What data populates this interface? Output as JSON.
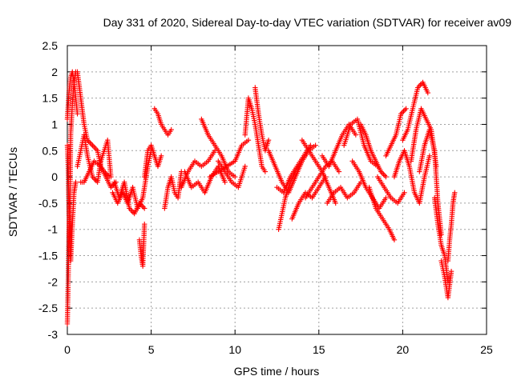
{
  "chart_data": {
    "type": "scatter",
    "title": "Day 331 of 2020, Sidereal Day-to-day VTEC variation (SDTVAR) for receiver av09",
    "xlabel": "GPS time / hours",
    "ylabel": "SDTVAR / TECUs",
    "xlim": [
      0,
      25
    ],
    "ylim": [
      -3,
      2.5
    ],
    "xticks": [
      "0",
      "5",
      "10",
      "15",
      "20",
      "25"
    ],
    "yticks": [
      "2.5",
      "2",
      "1.5",
      "1",
      "0.5",
      "0",
      "-0.5",
      "-1",
      "-1.5",
      "-2",
      "-2.5",
      "-3"
    ],
    "grid": true,
    "marker": "+",
    "series": [
      {
        "name": "SDTVAR",
        "color": "#ff0000",
        "tracks": [
          {
            "x": [
              0.0,
              0.1,
              0.2,
              0.3,
              0.4,
              0.5,
              0.6
            ],
            "y": [
              1.1,
              1.6,
              1.9,
              2.0,
              1.8,
              1.5,
              1.2
            ]
          },
          {
            "x": [
              0.0,
              0.05,
              0.1,
              0.15,
              0.2,
              0.3,
              0.4,
              0.5
            ],
            "y": [
              -2.8,
              -2.0,
              -1.0,
              -0.6,
              0.8,
              1.4,
              1.8,
              2.0
            ]
          },
          {
            "x": [
              0.0,
              0.05,
              0.1,
              0.2,
              0.3,
              0.4,
              0.5
            ],
            "y": [
              0.6,
              0.2,
              -0.7,
              -1.6,
              -0.9,
              -0.3,
              -0.1
            ]
          },
          {
            "x": [
              0.6,
              0.8,
              1.0,
              1.2,
              1.5,
              1.8,
              2.0,
              2.2,
              2.5
            ],
            "y": [
              2.0,
              1.5,
              1.0,
              0.7,
              0.6,
              0.5,
              0.2,
              0.1,
              0.0
            ]
          },
          {
            "x": [
              0.6,
              0.8,
              1.0,
              1.2,
              1.5,
              1.8,
              2.0,
              2.4,
              2.6
            ],
            "y": [
              0.2,
              0.5,
              0.8,
              0.4,
              0.0,
              -0.1,
              0.3,
              0.7,
              0.0
            ]
          },
          {
            "x": [
              0.8,
              1.0,
              1.3,
              1.6,
              2.0,
              2.3,
              2.6,
              2.9
            ],
            "y": [
              -0.1,
              -0.1,
              0.1,
              0.3,
              0.2,
              0.0,
              -0.2,
              -0.1
            ]
          },
          {
            "x": [
              2.7,
              3.0,
              3.3,
              3.6,
              3.9,
              4.2,
              4.5,
              4.8,
              5.0
            ],
            "y": [
              -0.3,
              -0.5,
              -0.3,
              -0.5,
              -0.2,
              -0.6,
              -0.4,
              0.2,
              0.5
            ]
          },
          {
            "x": [
              2.8,
              3.1,
              3.4,
              3.7,
              4.0,
              4.3,
              4.6
            ],
            "y": [
              -0.1,
              -0.4,
              -0.1,
              -0.6,
              -0.7,
              -0.5,
              -0.6
            ]
          },
          {
            "x": [
              4.3,
              4.4,
              4.5,
              4.6
            ],
            "y": [
              -1.2,
              -1.5,
              -1.7,
              -0.9
            ]
          },
          {
            "x": [
              4.6,
              4.8,
              5.0,
              5.2,
              5.4,
              5.6
            ],
            "y": [
              0.0,
              0.5,
              0.6,
              0.4,
              0.2,
              0.4
            ]
          },
          {
            "x": [
              5.2,
              5.4,
              5.6,
              5.8,
              6.0,
              6.2
            ],
            "y": [
              1.3,
              1.2,
              1.0,
              0.9,
              0.8,
              0.9
            ]
          },
          {
            "x": [
              5.8,
              6.0,
              6.2,
              6.4,
              6.6,
              6.8
            ],
            "y": [
              -0.6,
              -0.2,
              0.0,
              -0.3,
              -0.4,
              0.1
            ]
          },
          {
            "x": [
              6.8,
              7.2,
              7.6,
              8.0,
              8.4,
              8.8
            ],
            "y": [
              -0.2,
              0.1,
              0.3,
              0.2,
              0.3,
              0.5
            ]
          },
          {
            "x": [
              7.0,
              7.4,
              7.8,
              8.2,
              8.6,
              9.0,
              9.4
            ],
            "y": [
              0.1,
              -0.2,
              -0.1,
              -0.3,
              0.0,
              0.2,
              -0.1
            ]
          },
          {
            "x": [
              8.0,
              8.4,
              8.8,
              9.2,
              9.6,
              10.0
            ],
            "y": [
              1.1,
              0.8,
              0.6,
              0.4,
              0.1,
              0.0
            ]
          },
          {
            "x": [
              8.5,
              9.0,
              9.5,
              10.0,
              10.4,
              10.8
            ],
            "y": [
              0.0,
              0.1,
              0.2,
              0.3,
              0.6,
              0.7
            ]
          },
          {
            "x": [
              9.0,
              9.4,
              9.8,
              10.2,
              10.6
            ],
            "y": [
              0.3,
              0.1,
              -0.1,
              -0.2,
              0.2
            ]
          },
          {
            "x": [
              10.6,
              10.8,
              11.0,
              11.2,
              11.4,
              11.6,
              11.8
            ],
            "y": [
              0.8,
              1.5,
              1.3,
              1.0,
              0.6,
              0.2,
              0.1
            ]
          },
          {
            "x": [
              11.2,
              11.4,
              11.6,
              11.8,
              12.0
            ],
            "y": [
              1.7,
              1.2,
              0.8,
              0.5,
              0.7
            ]
          },
          {
            "x": [
              12.0,
              12.4,
              12.8,
              13.2,
              13.6,
              14.0
            ],
            "y": [
              0.5,
              0.2,
              -0.1,
              -0.3,
              0.0,
              0.3
            ]
          },
          {
            "x": [
              12.6,
              12.8,
              13.0,
              13.3,
              13.6,
              14.0,
              14.4,
              14.8
            ],
            "y": [
              -1.0,
              -0.7,
              -0.4,
              -0.1,
              0.1,
              0.3,
              0.5,
              0.6
            ]
          },
          {
            "x": [
              12.5,
              12.9,
              13.3,
              13.7,
              14.1,
              14.5
            ],
            "y": [
              -0.2,
              -0.3,
              0.0,
              0.2,
              0.4,
              0.6
            ]
          },
          {
            "x": [
              13.4,
              13.8,
              14.2,
              14.6,
              15.0,
              15.4
            ],
            "y": [
              -0.8,
              -0.5,
              -0.3,
              -0.4,
              -0.2,
              0.0
            ]
          },
          {
            "x": [
              14.0,
              14.4,
              14.8,
              15.2,
              15.6,
              16.0
            ],
            "y": [
              0.7,
              0.5,
              0.3,
              0.1,
              -0.2,
              -0.5
            ]
          },
          {
            "x": [
              14.2,
              14.6,
              15.0,
              15.4,
              15.8,
              16.2
            ],
            "y": [
              -0.4,
              -0.2,
              0.0,
              0.2,
              0.3,
              0.1
            ]
          },
          {
            "x": [
              15.2,
              15.6,
              16.0,
              16.4,
              16.8,
              17.2
            ],
            "y": [
              0.4,
              0.2,
              0.5,
              0.8,
              1.0,
              0.8
            ]
          },
          {
            "x": [
              15.5,
              15.9,
              16.3,
              16.7,
              17.1,
              17.5
            ],
            "y": [
              -0.5,
              -0.3,
              -0.2,
              -0.4,
              -0.3,
              -0.1
            ]
          },
          {
            "x": [
              16.5,
              16.9,
              17.3,
              17.7,
              18.1,
              18.5
            ],
            "y": [
              0.6,
              1.0,
              1.1,
              0.6,
              0.3,
              0.2
            ]
          },
          {
            "x": [
              17.0,
              17.4,
              17.8,
              18.2,
              18.6,
              19.0
            ],
            "y": [
              0.3,
              0.1,
              -0.2,
              -0.4,
              -0.6,
              -0.4
            ]
          },
          {
            "x": [
              17.5,
              17.8,
              18.1,
              18.4,
              18.7,
              19.0
            ],
            "y": [
              1.0,
              0.8,
              0.5,
              0.3,
              0.1,
              0.0
            ]
          },
          {
            "x": [
              18.0,
              18.4,
              18.8,
              19.2,
              19.5
            ],
            "y": [
              -0.2,
              -0.6,
              -0.8,
              -1.0,
              -1.2
            ]
          },
          {
            "x": [
              18.5,
              18.9,
              19.3,
              19.7,
              20.1
            ],
            "y": [
              0.0,
              -0.2,
              -0.4,
              -0.5,
              -0.3
            ]
          },
          {
            "x": [
              19.0,
              19.3,
              19.6,
              19.9,
              20.2
            ],
            "y": [
              0.4,
              0.6,
              0.8,
              1.2,
              1.3
            ]
          },
          {
            "x": [
              19.5,
              19.8,
              20.1,
              20.4,
              20.7,
              21.0,
              21.3,
              21.6
            ],
            "y": [
              0.0,
              0.3,
              0.5,
              0.2,
              -0.3,
              -0.5,
              0.0,
              0.4
            ]
          },
          {
            "x": [
              20.0,
              20.3,
              20.6,
              20.9,
              21.2,
              21.5
            ],
            "y": [
              0.7,
              0.9,
              1.3,
              1.7,
              1.8,
              1.6
            ]
          },
          {
            "x": [
              20.5,
              20.8,
              21.1,
              21.4,
              21.7,
              22.0
            ],
            "y": [
              0.3,
              0.9,
              1.3,
              1.1,
              0.9,
              0.2
            ]
          },
          {
            "x": [
              21.0,
              21.3,
              21.6,
              21.9,
              22.1,
              22.3
            ],
            "y": [
              0.1,
              0.6,
              0.9,
              0.5,
              -0.5,
              -1.1
            ]
          },
          {
            "x": [
              21.9,
              22.1,
              22.3,
              22.5,
              22.7
            ],
            "y": [
              -0.4,
              -0.9,
              -1.3,
              -1.5,
              -2.0
            ]
          },
          {
            "x": [
              22.3,
              22.5,
              22.7,
              22.9
            ],
            "y": [
              -1.6,
              -1.9,
              -2.3,
              -1.8
            ]
          },
          {
            "x": [
              22.7,
              22.8,
              22.9,
              23.0,
              23.1
            ],
            "y": [
              -1.6,
              -1.2,
              -0.9,
              -0.5,
              -0.3
            ]
          }
        ]
      }
    ]
  }
}
